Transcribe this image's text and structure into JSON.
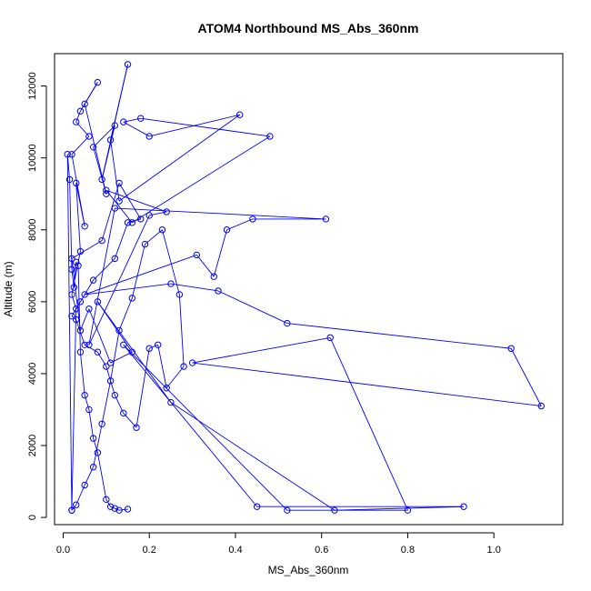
{
  "chart_data": {
    "type": "line",
    "title": "ATOM4 Northbound MS_Abs_360nm",
    "xlabel": "MS_Abs_360nm",
    "ylabel": "Altitude (m)",
    "xlim": [
      -0.02,
      1.16
    ],
    "ylim": [
      -200,
      12900
    ],
    "x_ticks": [
      0.0,
      0.2,
      0.4,
      0.6,
      0.8,
      1.0
    ],
    "x_tick_labels": [
      "0.0",
      "0.2",
      "0.4",
      "0.6",
      "0.8",
      "1.0"
    ],
    "y_ticks": [
      0,
      2000,
      4000,
      6000,
      8000,
      10000,
      12000
    ],
    "y_tick_labels": [
      "0",
      "2000",
      "4000",
      "6000",
      "8000",
      "10000",
      "12000"
    ],
    "grid": false,
    "legend": "none",
    "marker": "open-circle",
    "colors": {
      "series": "#0000ff",
      "axis": "#000000",
      "background": "#ffffff"
    },
    "series": [
      {
        "x": [
          0.02,
          0.03,
          0.02,
          0.04,
          0.03,
          0.05,
          0.02,
          0.06,
          0.03,
          0.04,
          0.08,
          0.05,
          0.1,
          0.07,
          0.12,
          0.09,
          0.15,
          0.11,
          0.13,
          0.41,
          0.2,
          0.14,
          0.18,
          0.48,
          0.16,
          0.1,
          0.24,
          0.2,
          0.06,
          0.12,
          0.61,
          0.44,
          0.38,
          0.35,
          0.31,
          0.05,
          0.25,
          0.36,
          0.52,
          1.04,
          1.11,
          0.3,
          0.62,
          0.8,
          0.52,
          0.14,
          0.45,
          0.93,
          0.63,
          0.25,
          0.08,
          0.16,
          0.11,
          0.06,
          0.04,
          0.02,
          0.09,
          0.13,
          0.18,
          0.15,
          0.12,
          0.07,
          0.04,
          0.02,
          0.03,
          0.05,
          0.08,
          0.1,
          0.12,
          0.14,
          0.17,
          0.2,
          0.22,
          0.24,
          0.28,
          0.27,
          0.23,
          0.19,
          0.16,
          0.13,
          0.11,
          0.09,
          0.07,
          0.05,
          0.03,
          0.02,
          0.01,
          0.015,
          0.02,
          0.025,
          0.03,
          0.035,
          0.04,
          0.05,
          0.06,
          0.07,
          0.08,
          0.1,
          0.11,
          0.12,
          0.13,
          0.15
        ],
        "y": [
          200,
          5800,
          6200,
          7400,
          9300,
          8100,
          10100,
          10600,
          11000,
          11300,
          12100,
          11500,
          9000,
          10300,
          10900,
          9400,
          12600,
          10500,
          8800,
          11200,
          10600,
          11000,
          11100,
          10600,
          8200,
          9100,
          8500,
          8400,
          4800,
          8600,
          8300,
          8300,
          8000,
          6700,
          7300,
          6200,
          6500,
          6300,
          5400,
          4700,
          3100,
          4300,
          5000,
          200,
          200,
          4800,
          300,
          300,
          200,
          3200,
          6000,
          4600,
          4300,
          5800,
          5200,
          7200,
          7700,
          9300,
          8300,
          8200,
          7200,
          6600,
          6000,
          5600,
          5500,
          4800,
          4600,
          4200,
          3400,
          2900,
          2500,
          4700,
          4800,
          3600,
          4200,
          6200,
          8000,
          7600,
          6100,
          5200,
          3800,
          2600,
          1400,
          900,
          350,
          200,
          10100,
          9400,
          6900,
          6400,
          7100,
          7000,
          4600,
          3400,
          3000,
          2200,
          1800,
          500,
          300,
          250,
          200,
          230
        ]
      }
    ]
  }
}
